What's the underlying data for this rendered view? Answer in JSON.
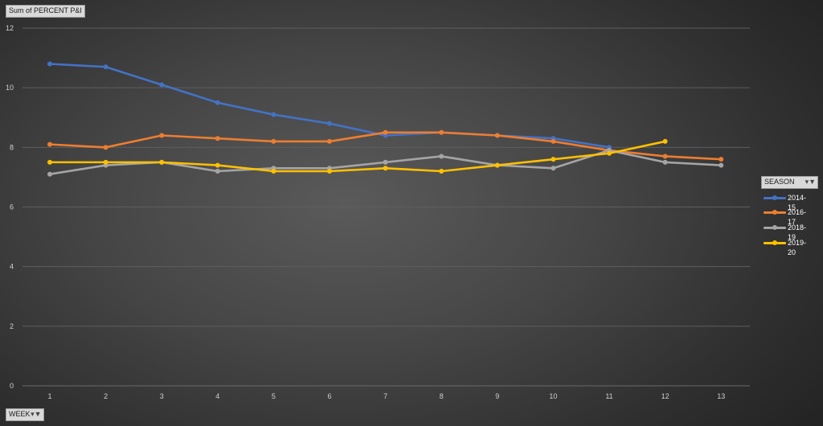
{
  "field_buttons": {
    "values_field": "Sum of PERCENT P&I",
    "axis_field": "WEEK",
    "legend_field": "SEASON"
  },
  "icons": {
    "filter": "filter-dropdown-icon"
  },
  "chart_data": {
    "type": "line",
    "title": "",
    "xlabel": "",
    "ylabel": "",
    "x": [
      1,
      2,
      3,
      4,
      5,
      6,
      7,
      8,
      9,
      10,
      11,
      12,
      13
    ],
    "ylim": [
      0,
      12
    ],
    "yticks": [
      0,
      2,
      4,
      6,
      8,
      10,
      12
    ],
    "grid": true,
    "legend_position": "right",
    "series": [
      {
        "name": "2014-15",
        "color": "#4472c4",
        "values": [
          10.8,
          10.7,
          10.1,
          9.5,
          9.1,
          8.8,
          8.4,
          8.5,
          8.4,
          8.3,
          8.0,
          null,
          null
        ]
      },
      {
        "name": "2016-17",
        "color": "#ed7d31",
        "values": [
          8.1,
          8.0,
          8.4,
          8.3,
          8.2,
          8.2,
          8.5,
          8.5,
          8.4,
          8.2,
          7.9,
          7.7,
          7.6
        ]
      },
      {
        "name": "2018-19",
        "color": "#a5a5a5",
        "values": [
          7.1,
          7.4,
          7.5,
          7.2,
          7.3,
          7.3,
          7.5,
          7.7,
          7.4,
          7.3,
          7.9,
          7.5,
          7.4
        ]
      },
      {
        "name": "2019-20",
        "color": "#ffc000",
        "values": [
          7.5,
          7.5,
          7.5,
          7.4,
          7.2,
          7.2,
          7.3,
          7.2,
          7.4,
          7.6,
          7.8,
          8.2,
          null
        ]
      }
    ]
  }
}
